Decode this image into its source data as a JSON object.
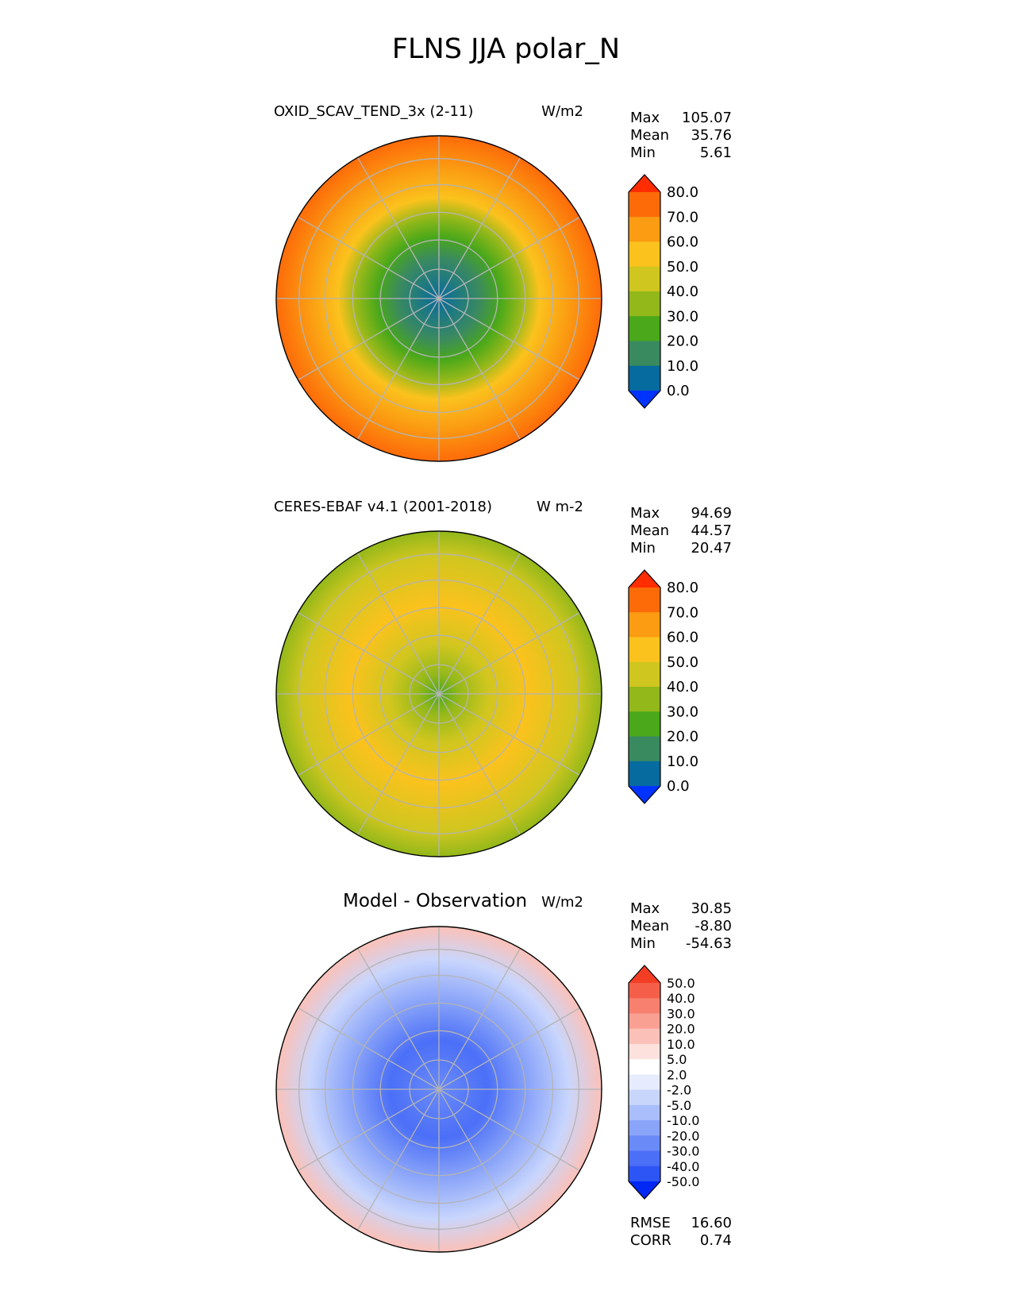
{
  "title": "FLNS JJA polar_N",
  "chart_data": [
    {
      "type": "heatmap",
      "projection": "north polar stereographic",
      "title": "OXID_SCAV_TEND_3x (2-11)",
      "units": "W/m2",
      "stats": {
        "max": "105.07",
        "mean": "35.76",
        "min": "5.61"
      },
      "stat_labels": {
        "max": "Max",
        "mean": "Mean",
        "min": "Min"
      },
      "colorbar": {
        "levels": [
          "0.0",
          "10.0",
          "20.0",
          "30.0",
          "40.0",
          "50.0",
          "60.0",
          "70.0",
          "80.0"
        ],
        "colors": [
          "#0033ff",
          "#066b9e",
          "#3a8a60",
          "#4aa81a",
          "#93b81a",
          "#cfc61f",
          "#fbc21d",
          "#fb9c12",
          "#fd6b09",
          "#ff2d00"
        ]
      },
      "field": [
        {
          "r": 0.0,
          "v": "#066b9e"
        },
        {
          "r": 0.25,
          "v": "#3a8a60"
        },
        {
          "r": 0.38,
          "v": "#4aa81a"
        },
        {
          "r": 0.5,
          "v": "#93b81a"
        },
        {
          "r": 0.62,
          "v": "#fbc21d"
        },
        {
          "r": 0.8,
          "v": "#fb9c12"
        },
        {
          "r": 1.0,
          "v": "#fd6b09"
        }
      ],
      "grid": true
    },
    {
      "type": "heatmap",
      "projection": "north polar stereographic",
      "title": "CERES-EBAF v4.1 (2001-2018)",
      "units": "W m-2",
      "stats": {
        "max": "94.69",
        "mean": "44.57",
        "min": "20.47"
      },
      "stat_labels": {
        "max": "Max",
        "mean": "Mean",
        "min": "Min"
      },
      "colorbar": {
        "levels": [
          "0.0",
          "10.0",
          "20.0",
          "30.0",
          "40.0",
          "50.0",
          "60.0",
          "70.0",
          "80.0"
        ],
        "colors": [
          "#0033ff",
          "#066b9e",
          "#3a8a60",
          "#4aa81a",
          "#93b81a",
          "#cfc61f",
          "#fbc21d",
          "#fb9c12",
          "#fd6b09",
          "#ff2d00"
        ]
      },
      "field": [
        {
          "r": 0.0,
          "v": "#4aa81a"
        },
        {
          "r": 0.12,
          "v": "#93b81a"
        },
        {
          "r": 0.3,
          "v": "#cfc61f"
        },
        {
          "r": 0.55,
          "v": "#fbc21d"
        },
        {
          "r": 0.85,
          "v": "#cfc61f"
        },
        {
          "r": 1.0,
          "v": "#93b81a"
        }
      ],
      "grid": true
    },
    {
      "type": "heatmap",
      "projection": "north polar stereographic",
      "title": "Model - Observation",
      "units": "W/m2",
      "stats": {
        "max": "30.85",
        "mean": "-8.80",
        "min": "-54.63"
      },
      "stat_labels": {
        "max": "Max",
        "mean": "Mean",
        "min": "Min"
      },
      "extra_stats": {
        "rmse": "16.60",
        "corr": "0.74"
      },
      "extra_labels": {
        "rmse": "RMSE",
        "corr": "CORR"
      },
      "colorbar": {
        "levels": [
          "-50.0",
          "-40.0",
          "-30.0",
          "-20.0",
          "-10.0",
          "-5.0",
          "-2.0",
          "2.0",
          "5.0",
          "10.0",
          "20.0",
          "30.0",
          "40.0",
          "50.0"
        ],
        "colors": [
          "#0028f5",
          "#2d55f5",
          "#4b6ff7",
          "#6a8af8",
          "#8aa4f9",
          "#aabefb",
          "#c9d6fc",
          "#e6ecfd",
          "#ffffff",
          "#fde1dd",
          "#fbc1b8",
          "#f9a093",
          "#f7806e",
          "#f55f49",
          "#f33e24"
        ]
      },
      "field": [
        {
          "r": 0.0,
          "v": "#6a8af8"
        },
        {
          "r": 0.3,
          "v": "#4b6ff7"
        },
        {
          "r": 0.55,
          "v": "#8aa4f9"
        },
        {
          "r": 0.8,
          "v": "#c9d6fc"
        },
        {
          "r": 1.0,
          "v": "#fbc1b8"
        }
      ],
      "grid": true
    }
  ]
}
